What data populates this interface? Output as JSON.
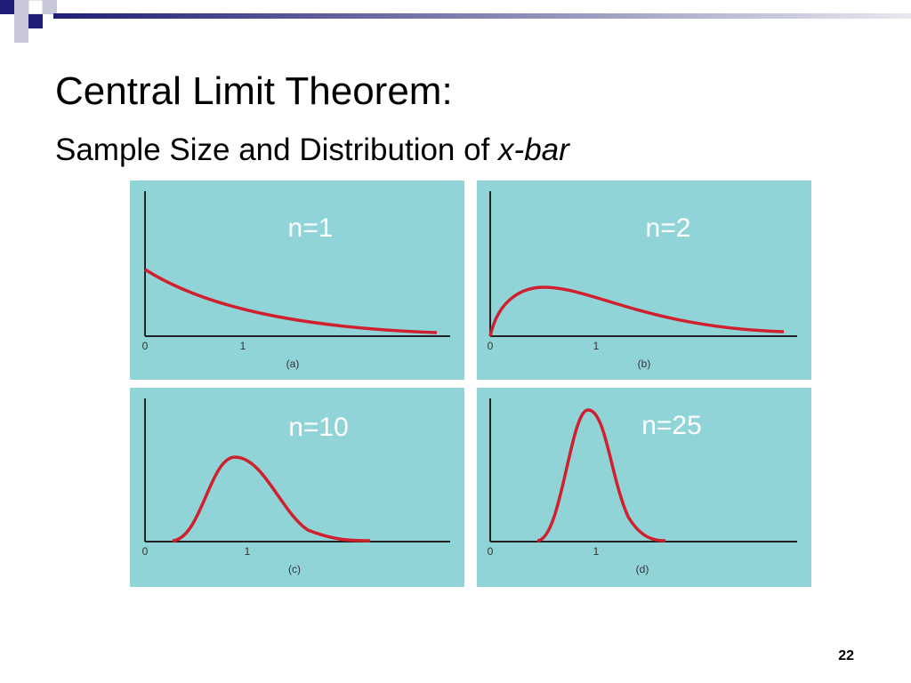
{
  "title": "Central Limit Theorem:",
  "subtitle": {
    "text": "Sample Size and Distribution of ",
    "italic": "x-bar"
  },
  "panels": [
    {
      "label": "n=1",
      "caption": "(a)",
      "ticks": [
        "0",
        "1"
      ]
    },
    {
      "label": "n=2",
      "caption": "(b)",
      "ticks": [
        "0",
        "1"
      ]
    },
    {
      "label": "n=10",
      "caption": "(c)",
      "ticks": [
        "0",
        "1"
      ]
    },
    {
      "label": "n=25",
      "caption": "(d)",
      "ticks": [
        "0",
        "1"
      ]
    }
  ],
  "page_number": "22"
}
